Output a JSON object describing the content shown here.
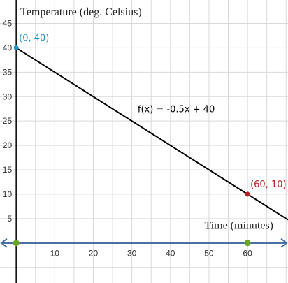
{
  "chart_data": {
    "type": "line",
    "title": "",
    "xlabel": "Time (minutes)",
    "ylabel": "Temperature (deg. Celsius)",
    "xlim": [
      -4.2,
      70.5
    ],
    "ylim": [
      -8.2,
      49.8
    ],
    "x_ticks": [
      10,
      20,
      30,
      40,
      50,
      60
    ],
    "y_ticks": [
      5,
      10,
      15,
      20,
      25,
      30,
      35,
      40,
      45
    ],
    "grid": true,
    "series": [
      {
        "name": "",
        "function": "f(x) = -0.5x + 40",
        "x": [
          0,
          70.5
        ],
        "y": [
          40,
          4.75
        ],
        "color": "#000000"
      }
    ],
    "points": [
      {
        "x": 0,
        "y": 40,
        "label": "(0, 40)",
        "color": "#1e90c8"
      },
      {
        "x": 60,
        "y": 10,
        "label": "(60, 10)",
        "color": "#b22222"
      }
    ],
    "axis_markers": [
      {
        "x": 0,
        "color": "#6aa52a"
      },
      {
        "x": 60,
        "color": "#6aa52a"
      }
    ],
    "function_label": "f(x) = -0.5x + 40"
  },
  "colors": {
    "grid": "#d9d9d9",
    "x_axis": "#4a6fa5",
    "y_axis": "#000000"
  }
}
